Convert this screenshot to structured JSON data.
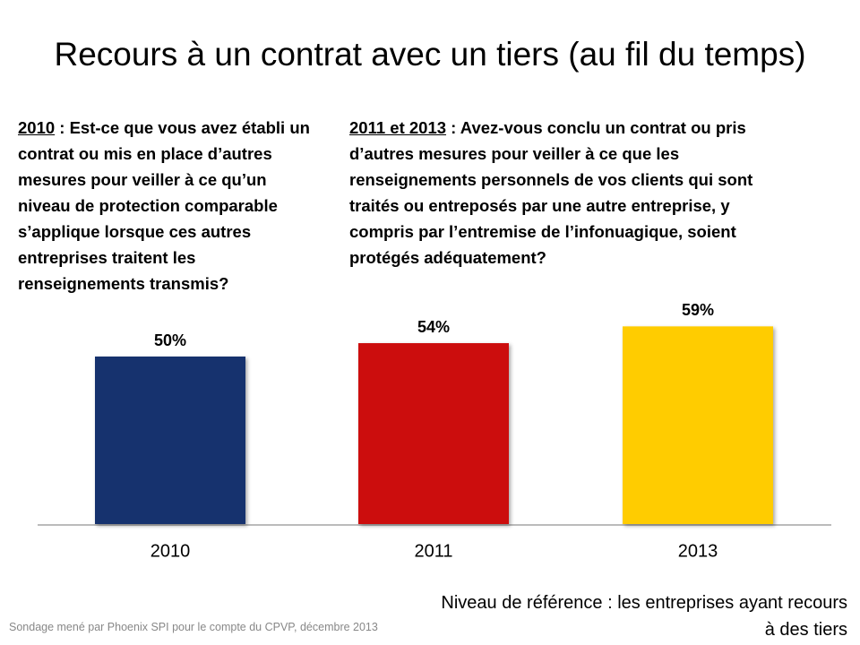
{
  "chart_data": {
    "type": "bar",
    "title": "Recours à un contrat avec un tiers (au fil du temps)",
    "questions": [
      {
        "label": "2010",
        "text": " : Est-ce que vous avez établi un contrat ou mis en place d’autres mesures pour veiller à ce qu’un niveau de protection comparable s’applique lorsque ces autres entreprises traitent les renseignements transmis?"
      },
      {
        "label": "2011 et 2013",
        "text": " : Avez-vous conclu un contrat ou pris d’autres mesures pour veiller à ce que les renseignements personnels de vos clients qui sont traités ou entreposés par une autre entreprise, y compris par l’entremise de l’infonuagique, soient protégés adéquatement?"
      }
    ],
    "categories": [
      "2010",
      "2011",
      "2013"
    ],
    "values": [
      50,
      54,
      59
    ],
    "value_labels": [
      "50%",
      "54%",
      "59%"
    ],
    "colors": [
      "#12306e",
      "#cc0a0a",
      "#ffcc00"
    ],
    "note": "Niveau de référence : les entreprises ayant recours à des tiers",
    "source": "Sondage mené par Phoenix SPI pour le compte du CPVP, décembre 2013"
  }
}
